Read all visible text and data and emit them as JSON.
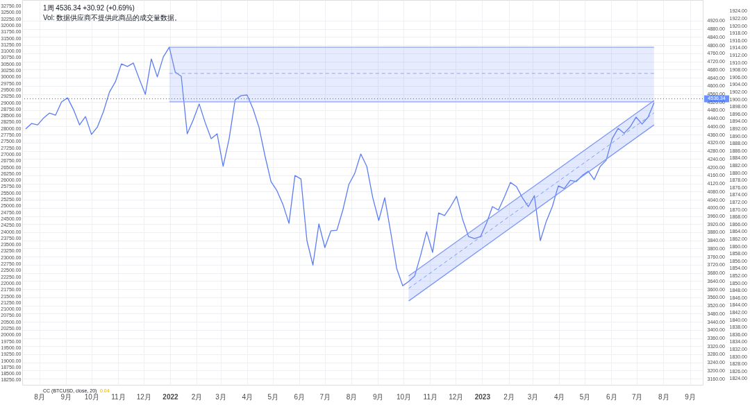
{
  "chart_data": {
    "type": "line",
    "x": [
      "2021-07-16",
      "2021-07-23",
      "2021-07-30",
      "2021-08-06",
      "2021-08-13",
      "2021-08-20",
      "2021-08-27",
      "2021-09-03",
      "2021-09-10",
      "2021-09-17",
      "2021-09-24",
      "2021-10-01",
      "2021-10-08",
      "2021-10-15",
      "2021-10-22",
      "2021-10-29",
      "2021-11-05",
      "2021-11-12",
      "2021-11-19",
      "2021-11-26",
      "2021-12-03",
      "2021-12-10",
      "2021-12-17",
      "2021-12-24",
      "2021-12-31",
      "2022-01-07",
      "2022-01-14",
      "2022-01-21",
      "2022-01-28",
      "2022-02-04",
      "2022-02-11",
      "2022-02-18",
      "2022-02-25",
      "2022-03-04",
      "2022-03-11",
      "2022-03-18",
      "2022-03-25",
      "2022-04-01",
      "2022-04-08",
      "2022-04-15",
      "2022-04-22",
      "2022-04-29",
      "2022-05-06",
      "2022-05-13",
      "2022-05-20",
      "2022-05-27",
      "2022-06-03",
      "2022-06-10",
      "2022-06-17",
      "2022-06-24",
      "2022-07-01",
      "2022-07-08",
      "2022-07-15",
      "2022-07-22",
      "2022-07-29",
      "2022-08-05",
      "2022-08-12",
      "2022-08-19",
      "2022-08-26",
      "2022-09-02",
      "2022-09-09",
      "2022-09-16",
      "2022-09-23",
      "2022-09-30",
      "2022-10-07",
      "2022-10-14",
      "2022-10-21",
      "2022-10-28",
      "2022-11-04",
      "2022-11-11",
      "2022-11-18",
      "2022-11-25",
      "2022-12-02",
      "2022-12-09",
      "2022-12-16",
      "2022-12-23",
      "2022-12-30",
      "2023-01-06",
      "2023-01-13",
      "2023-01-20",
      "2023-01-27",
      "2023-02-03",
      "2023-02-10",
      "2023-02-17",
      "2023-02-24",
      "2023-03-03",
      "2023-03-10",
      "2023-03-17",
      "2023-03-24",
      "2023-03-31",
      "2023-04-07",
      "2023-04-14",
      "2023-04-21",
      "2023-04-28",
      "2023-05-05",
      "2023-05-12",
      "2023-05-19",
      "2023-05-26",
      "2023-06-02",
      "2023-06-09",
      "2023-06-16",
      "2023-06-23",
      "2023-06-30",
      "2023-07-07",
      "2023-07-14",
      "2023-07-21"
    ],
    "series": [
      {
        "color": "#5b7cf6",
        "values": [
          4388,
          4415,
          4408,
          4442,
          4466,
          4456,
          4521,
          4541,
          4483,
          4408,
          4449,
          4361,
          4398,
          4473,
          4569,
          4620,
          4708,
          4695,
          4712,
          4633,
          4558,
          4732,
          4644,
          4742,
          4790,
          4667,
          4647,
          4364,
          4432,
          4511,
          4419,
          4340,
          4364,
          4204,
          4340,
          4531,
          4552,
          4555,
          4487,
          4395,
          4255,
          4129,
          4084,
          4016,
          3924,
          4159,
          4142,
          3839,
          3719,
          3921,
          3805,
          3887,
          3890,
          3989,
          4115,
          4170,
          4265,
          4204,
          4050,
          3938,
          4050,
          3880,
          3702,
          3617,
          3638,
          3665,
          3767,
          3883,
          3781,
          3975,
          3962,
          4006,
          4057,
          3945,
          3859,
          3849,
          3859,
          3924,
          4006,
          3989,
          4054,
          4125,
          4105,
          4050,
          4006,
          4060,
          3839,
          3934,
          4006,
          4108,
          4095,
          4135,
          4129,
          4159,
          4180,
          4139,
          4204,
          4234,
          4340,
          4391,
          4367,
          4398,
          4446,
          4412,
          4446,
          4517
        ]
      },
      {
        "color": "#8fa6f7",
        "x": [
          "2021-12-31",
          "2023-07-21"
        ],
        "values": [
          4790,
          4790
        ]
      },
      {
        "color": "#8fa6f7",
        "x": [
          "2021-12-31",
          "2023-07-21"
        ],
        "values": [
          4521,
          4521
        ]
      },
      {
        "color": "#7c98f6",
        "x": [
          "2022-10-07",
          "2023-07-21"
        ],
        "values": [
          3665,
          4528
        ]
      },
      {
        "color": "#7c98f6",
        "x": [
          "2022-10-07",
          "2023-07-21"
        ],
        "values": [
          3542,
          4408
        ]
      },
      {
        "color": "#8fa6f7",
        "line_style": "dashed",
        "x": [
          "2021-12-31",
          "2023-07-21"
        ],
        "values": [
          4661,
          4661
        ],
        "lower": [
          4521,
          4521
        ],
        "upper": [
          4790,
          4790
        ]
      },
      {
        "color": "#7c98f6",
        "line_style": "dashed",
        "x": [
          "2022-10-07",
          "2023-07-21"
        ],
        "values": [
          3604,
          4467
        ],
        "lower": [
          3542,
          4408
        ],
        "upper": [
          3665,
          4528
        ]
      }
    ],
    "xlim": [
      "2021-07-12",
      "2023-09-16"
    ],
    "xticks": [
      {
        "value": "2021-08-01",
        "label": "8月"
      },
      {
        "value": "2021-09-01",
        "label": "9月"
      },
      {
        "value": "2021-10-01",
        "label": "10月"
      },
      {
        "value": "2021-11-01",
        "label": "11月"
      },
      {
        "value": "2021-12-01",
        "label": "12月"
      },
      {
        "value": "2022-01-01",
        "label": "2022"
      },
      {
        "value": "2022-02-01",
        "label": "2月"
      },
      {
        "value": "2022-03-01",
        "label": "3月"
      },
      {
        "value": "2022-04-01",
        "label": "4月"
      },
      {
        "value": "2022-05-01",
        "label": "5月"
      },
      {
        "value": "2022-06-01",
        "label": "6月"
      },
      {
        "value": "2022-07-01",
        "label": "7月"
      },
      {
        "value": "2022-08-01",
        "label": "8月"
      },
      {
        "value": "2022-09-01",
        "label": "9月"
      },
      {
        "value": "2022-10-01",
        "label": "10月"
      },
      {
        "value": "2022-11-01",
        "label": "11月"
      },
      {
        "value": "2022-12-01",
        "label": "12月"
      },
      {
        "value": "2023-01-01",
        "label": "2023"
      },
      {
        "value": "2023-02-01",
        "label": "2月"
      },
      {
        "value": "2023-03-01",
        "label": "3月"
      },
      {
        "value": "2023-04-01",
        "label": "4月"
      },
      {
        "value": "2023-05-01",
        "label": "5月"
      },
      {
        "value": "2023-06-01",
        "label": "6月"
      },
      {
        "value": "2023-07-01",
        "label": "7月"
      },
      {
        "value": "2023-08-01",
        "label": "8月"
      },
      {
        "value": "2023-09-01",
        "label": "9月"
      }
    ],
    "ylim": [
      3130,
      5022
    ],
    "yticks": [
      {
        "value": 3160,
        "label": "3160.00"
      },
      {
        "value": 3200,
        "label": "3200.00"
      },
      {
        "value": 3240,
        "label": "3240.00"
      },
      {
        "value": 3280,
        "label": "3280.00"
      },
      {
        "value": 3320,
        "label": "3320.00"
      },
      {
        "value": 3360,
        "label": "3360.00"
      },
      {
        "value": 3400,
        "label": "3400.00"
      },
      {
        "value": 3440,
        "label": "3440.00"
      },
      {
        "value": 3480,
        "label": "3480.00"
      },
      {
        "value": 3520,
        "label": "3520.00"
      },
      {
        "value": 3560,
        "label": "3560.00"
      },
      {
        "value": 3600,
        "label": "3600.00"
      },
      {
        "value": 3640,
        "label": "3640.00"
      },
      {
        "value": 3680,
        "label": "3680.00"
      },
      {
        "value": 3720,
        "label": "3720.00"
      },
      {
        "value": 3760,
        "label": "3760.00"
      },
      {
        "value": 3800,
        "label": "3800.00"
      },
      {
        "value": 3840,
        "label": "3840.00"
      },
      {
        "value": 3880,
        "label": "3880.00"
      },
      {
        "value": 3920,
        "label": "3920.00"
      },
      {
        "value": 3960,
        "label": "3960.00"
      },
      {
        "value": 4000,
        "label": "4000.00"
      },
      {
        "value": 4040,
        "label": "4040.00"
      },
      {
        "value": 4080,
        "label": "4080.00"
      },
      {
        "value": 4120,
        "label": "4120.00"
      },
      {
        "value": 4160,
        "label": "4160.00"
      },
      {
        "value": 4200,
        "label": "4200.00"
      },
      {
        "value": 4240,
        "label": "4240.00"
      },
      {
        "value": 4280,
        "label": "4280.00"
      },
      {
        "value": 4320,
        "label": "4320.00"
      },
      {
        "value": 4360,
        "label": "4360.00"
      },
      {
        "value": 4400,
        "label": "4400.00"
      },
      {
        "value": 4440,
        "label": "4440.00"
      },
      {
        "value": 4480,
        "label": "4480.00"
      },
      {
        "value": 4520,
        "label": "4520.00"
      },
      {
        "value": 4560,
        "label": "4560.00"
      },
      {
        "value": 4600,
        "label": "4600.00"
      },
      {
        "value": 4640,
        "label": "4640.00"
      },
      {
        "value": 4680,
        "label": "4680.00"
      },
      {
        "value": 4720,
        "label": "4720.00"
      },
      {
        "value": 4760,
        "label": "4760.00"
      },
      {
        "value": 4800,
        "label": "4800.00"
      },
      {
        "value": 4840,
        "label": "4840.00"
      },
      {
        "value": 4880,
        "label": "4880.00"
      },
      {
        "value": 4920,
        "label": "4920.00"
      }
    ],
    "y2lim": [
      18060,
      32980
    ],
    "y2ticks": [
      {
        "value": 18250,
        "label": "18250.00"
      },
      {
        "value": 18500,
        "label": "18500.00"
      },
      {
        "value": 18750,
        "label": "18750.00"
      },
      {
        "value": 19000,
        "label": "19000.00"
      },
      {
        "value": 19250,
        "label": "19250.00"
      },
      {
        "value": 19500,
        "label": "19500.00"
      },
      {
        "value": 19750,
        "label": "19750.00"
      },
      {
        "value": 20000,
        "label": "20000.00"
      },
      {
        "value": 20250,
        "label": "20250.00"
      },
      {
        "value": 20500,
        "label": "20500.00"
      },
      {
        "value": 20750,
        "label": "20750.00"
      },
      {
        "value": 21000,
        "label": "21000.00"
      },
      {
        "value": 21250,
        "label": "21250.00"
      },
      {
        "value": 21500,
        "label": "21500.00"
      },
      {
        "value": 21750,
        "label": "21750.00"
      },
      {
        "value": 22000,
        "label": "22000.00"
      },
      {
        "value": 22250,
        "label": "22250.00"
      },
      {
        "value": 22500,
        "label": "22500.00"
      },
      {
        "value": 22750,
        "label": "22750.00"
      },
      {
        "value": 23000,
        "label": "23000.00"
      },
      {
        "value": 23250,
        "label": "23250.00"
      },
      {
        "value": 23500,
        "label": "23500.00"
      },
      {
        "value": 23750,
        "label": "23750.00"
      },
      {
        "value": 24000,
        "label": "24000.00"
      },
      {
        "value": 24250,
        "label": "24250.00"
      },
      {
        "value": 24500,
        "label": "24500.00"
      },
      {
        "value": 24750,
        "label": "24750.00"
      },
      {
        "value": 25000,
        "label": "25000.00"
      },
      {
        "value": 25250,
        "label": "25250.00"
      },
      {
        "value": 25500,
        "label": "25500.00"
      },
      {
        "value": 25750,
        "label": "25750.00"
      },
      {
        "value": 26000,
        "label": "26000.00"
      },
      {
        "value": 26250,
        "label": "26250.00"
      },
      {
        "value": 26500,
        "label": "26500.00"
      },
      {
        "value": 26750,
        "label": "26750.00"
      },
      {
        "value": 27000,
        "label": "27000.00"
      },
      {
        "value": 27250,
        "label": "27250.00"
      },
      {
        "value": 27500,
        "label": "27500.00"
      },
      {
        "value": 27750,
        "label": "27750.00"
      },
      {
        "value": 28000,
        "label": "28000.00"
      },
      {
        "value": 28250,
        "label": "28250.00"
      },
      {
        "value": 28500,
        "label": "28500.00"
      },
      {
        "value": 28750,
        "label": "28750.00"
      },
      {
        "value": 29000,
        "label": "29000.00"
      },
      {
        "value": 29250,
        "label": "29250.00"
      },
      {
        "value": 29500,
        "label": "29500.00"
      },
      {
        "value": 29750,
        "label": "29750.00"
      },
      {
        "value": 30000,
        "label": "30000.00"
      },
      {
        "value": 30250,
        "label": "30250.00"
      },
      {
        "value": 30500,
        "label": "30500.00"
      },
      {
        "value": 30750,
        "label": "30750.00"
      },
      {
        "value": 31000,
        "label": "31000.00"
      },
      {
        "value": 31250,
        "label": "31250.00"
      },
      {
        "value": 31500,
        "label": "31500.00"
      },
      {
        "value": 31750,
        "label": "31750.00"
      },
      {
        "value": 32000,
        "label": "32000.00"
      },
      {
        "value": 32250,
        "label": "32250.00"
      },
      {
        "value": 32500,
        "label": "32500.00"
      },
      {
        "value": 32750,
        "label": "32750.00"
      }
    ],
    "y3lim": [
      1822.3,
      1927
    ],
    "y3ticks": [
      {
        "value": 1824,
        "label": "1824.00"
      },
      {
        "value": 1826,
        "label": "1826.00"
      },
      {
        "value": 1828,
        "label": "1828.00"
      },
      {
        "value": 1830,
        "label": "1830.00"
      },
      {
        "value": 1832,
        "label": "1832.00"
      },
      {
        "value": 1834,
        "label": "1834.00"
      },
      {
        "value": 1836,
        "label": "1836.00"
      },
      {
        "value": 1838,
        "label": "1838.00"
      },
      {
        "value": 1840,
        "label": "1840.00"
      },
      {
        "value": 1842,
        "label": "1842.00"
      },
      {
        "value": 1844,
        "label": "1844.00"
      },
      {
        "value": 1846,
        "label": "1846.00"
      },
      {
        "value": 1848,
        "label": "1848.00"
      },
      {
        "value": 1850,
        "label": "1850.00"
      },
      {
        "value": 1852,
        "label": "1852.00"
      },
      {
        "value": 1854,
        "label": "1854.00"
      },
      {
        "value": 1856,
        "label": "1856.00"
      },
      {
        "value": 1858,
        "label": "1858.00"
      },
      {
        "value": 1860,
        "label": "1860.00"
      },
      {
        "value": 1862,
        "label": "1862.00"
      },
      {
        "value": 1864,
        "label": "1864.00"
      },
      {
        "value": 1866,
        "label": "1866.00"
      },
      {
        "value": 1868,
        "label": "1868.00"
      },
      {
        "value": 1870,
        "label": "1870.00"
      },
      {
        "value": 1872,
        "label": "1872.00"
      },
      {
        "value": 1874,
        "label": "1874.00"
      },
      {
        "value": 1876,
        "label": "1876.00"
      },
      {
        "value": 1878,
        "label": "1878.00"
      },
      {
        "value": 1880,
        "label": "1880.00"
      },
      {
        "value": 1882,
        "label": "1882.00"
      },
      {
        "value": 1884,
        "label": "1884.00"
      },
      {
        "value": 1886,
        "label": "1886.00"
      },
      {
        "value": 1888,
        "label": "1888.00"
      },
      {
        "value": 1890,
        "label": "1890.00"
      },
      {
        "value": 1892,
        "label": "1892.00"
      },
      {
        "value": 1894,
        "label": "1894.00"
      },
      {
        "value": 1896,
        "label": "1896.00"
      },
      {
        "value": 1898,
        "label": "1898.00"
      },
      {
        "value": 1900,
        "label": "1900.00"
      },
      {
        "value": 1902,
        "label": "1902.00"
      },
      {
        "value": 1904,
        "label": "1904.00"
      },
      {
        "value": 1906,
        "label": "1906.00"
      },
      {
        "value": 1908,
        "label": "1908.00"
      },
      {
        "value": 1910,
        "label": "1910.00"
      },
      {
        "value": 1912,
        "label": "1912.00"
      },
      {
        "value": 1914,
        "label": "1914.00"
      },
      {
        "value": 1916,
        "label": "1916.00"
      },
      {
        "value": 1918,
        "label": "1918.00"
      },
      {
        "value": 1920,
        "label": "1920.00"
      },
      {
        "value": 1922,
        "label": "1922.00"
      },
      {
        "value": 1924,
        "label": "1924.00"
      }
    ],
    "ref_lines": [
      {
        "axis": "y",
        "value": 4536.34,
        "label": "4536.34",
        "color": "#2962ff",
        "line_style": "dotted"
      }
    ],
    "annotations": [
      "1周  4536.34  +30.92 (+0.69%)",
      "Vol: 数据供应商不提供此商品的成交量数据。",
      "CC (BTCUSD, close, 20)",
      "0.04"
    ],
    "grid": true
  }
}
